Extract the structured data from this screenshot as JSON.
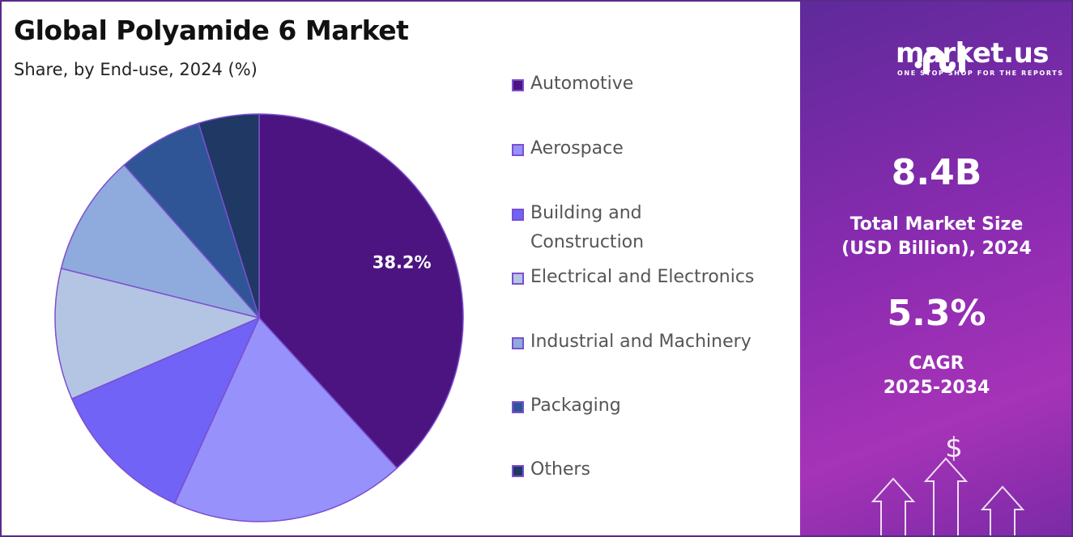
{
  "title": "Global Polyamide 6 Market",
  "subtitle": "Share, by End-use, 2024 (%)",
  "chart_data": {
    "type": "pie",
    "title": "Global Polyamide 6 Market",
    "subtitle": "Share, by End-use, 2024 (%)",
    "categories": [
      "Automotive",
      "Aerospace",
      "Building and Construction",
      "Electrical and Electronics",
      "Industrial and Machinery",
      "Packaging",
      "Others"
    ],
    "values": [
      38.2,
      18.6,
      11.7,
      10.4,
      9.6,
      6.7,
      4.8
    ],
    "colors": [
      "#4b1480",
      "#9791fb",
      "#7063f5",
      "#b4c5e4",
      "#8faadc",
      "#2f5597",
      "#1f3864"
    ],
    "data_labels": {
      "Automotive": "38.2%"
    },
    "legend": {
      "placement": "right",
      "lines": [
        [
          "Automotive"
        ],
        [
          "Aerospace"
        ],
        [
          "Building and",
          "Construction"
        ],
        [
          "Electrical and Electronics"
        ],
        [
          "Industrial and Machinery"
        ],
        [
          "Packaging"
        ],
        [
          "Others"
        ]
      ]
    },
    "start_angle": "top",
    "direction": "clockwise"
  },
  "panel": {
    "brand": "market.us",
    "tagline": "ONE STOP SHOP FOR THE REPORTS",
    "market_size": "8.4B",
    "market_size_label_1": "Total Market Size",
    "market_size_label_2": "(USD Billion), 2024",
    "cagr": "5.3%",
    "cagr_label_1": "CAGR",
    "cagr_label_2": "2025-2034",
    "icon": "dollar-arrows-icon"
  }
}
